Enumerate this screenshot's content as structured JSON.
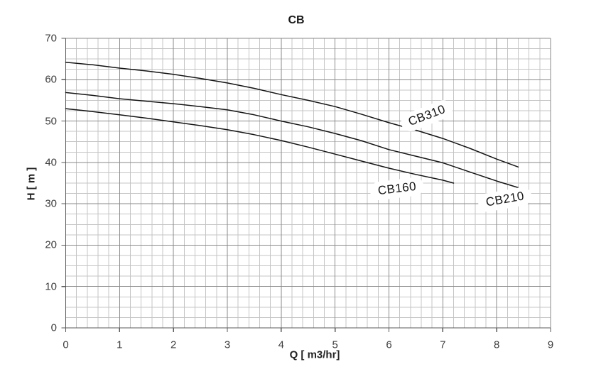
{
  "colors": {
    "background": "#ffffff",
    "grid_minor": "#c4c4c4",
    "grid_major": "#8a8a8a",
    "axis": "#5a5a5a",
    "curve": "#141414",
    "tick_text": "#3d3d3d",
    "title_text": "#1a1a1a"
  },
  "chart_data": {
    "type": "line",
    "title": "CB",
    "xlabel": "Q [ m3/hr]",
    "ylabel": "H [ m ]",
    "xlim": [
      0,
      9
    ],
    "ylim": [
      0,
      70
    ],
    "x_major_step": 1,
    "x_minor_step": 0.2,
    "y_major_step": 10,
    "y_minor_step": 2.5,
    "x_ticks": [
      0,
      1,
      2,
      3,
      4,
      5,
      6,
      7,
      8,
      9
    ],
    "y_ticks": [
      0,
      10,
      20,
      30,
      40,
      50,
      60,
      70
    ],
    "grid": "both-major-and-minor",
    "legend": "inline-rotated-labels",
    "series": [
      {
        "name": "CB310",
        "points": [
          [
            0,
            64.2
          ],
          [
            0.5,
            63.6
          ],
          [
            1,
            62.8
          ],
          [
            1.5,
            62.1
          ],
          [
            2,
            61.3
          ],
          [
            2.5,
            60.3
          ],
          [
            3,
            59.2
          ],
          [
            3.5,
            57.9
          ],
          [
            4,
            56.4
          ],
          [
            4.5,
            55.0
          ],
          [
            5,
            53.5
          ],
          [
            5.5,
            51.6
          ],
          [
            6,
            49.6
          ],
          [
            6.5,
            47.8
          ],
          [
            7,
            45.8
          ],
          [
            7.5,
            43.4
          ],
          [
            8,
            40.8
          ],
          [
            8.4,
            38.9
          ]
        ],
        "label_pos": {
          "q": 6.71,
          "h": 51.3,
          "angle": -21
        }
      },
      {
        "name": "CB210",
        "points": [
          [
            0,
            56.9
          ],
          [
            0.5,
            56.2
          ],
          [
            1,
            55.4
          ],
          [
            1.5,
            54.8
          ],
          [
            2,
            54.2
          ],
          [
            2.5,
            53.5
          ],
          [
            3,
            52.7
          ],
          [
            3.5,
            51.5
          ],
          [
            4,
            50.0
          ],
          [
            4.5,
            48.6
          ],
          [
            5,
            47.0
          ],
          [
            5.5,
            45.2
          ],
          [
            6,
            43.1
          ],
          [
            6.5,
            41.5
          ],
          [
            7,
            39.9
          ],
          [
            7.5,
            37.7
          ],
          [
            8,
            35.5
          ],
          [
            8.4,
            33.9
          ]
        ],
        "label_pos": {
          "q": 8.15,
          "h": 31.0,
          "angle": -10
        }
      },
      {
        "name": "CB160",
        "points": [
          [
            0,
            53.0
          ],
          [
            0.5,
            52.3
          ],
          [
            1,
            51.5
          ],
          [
            1.5,
            50.7
          ],
          [
            2,
            49.8
          ],
          [
            2.5,
            48.9
          ],
          [
            3,
            47.9
          ],
          [
            3.5,
            46.7
          ],
          [
            4,
            45.3
          ],
          [
            4.5,
            43.7
          ],
          [
            5,
            42.0
          ],
          [
            5.5,
            40.3
          ],
          [
            6,
            38.6
          ],
          [
            6.5,
            37.1
          ],
          [
            7,
            35.7
          ],
          [
            7.2,
            35.0
          ]
        ],
        "label_pos": {
          "q": 6.15,
          "h": 33.6,
          "angle": -7
        }
      }
    ]
  }
}
